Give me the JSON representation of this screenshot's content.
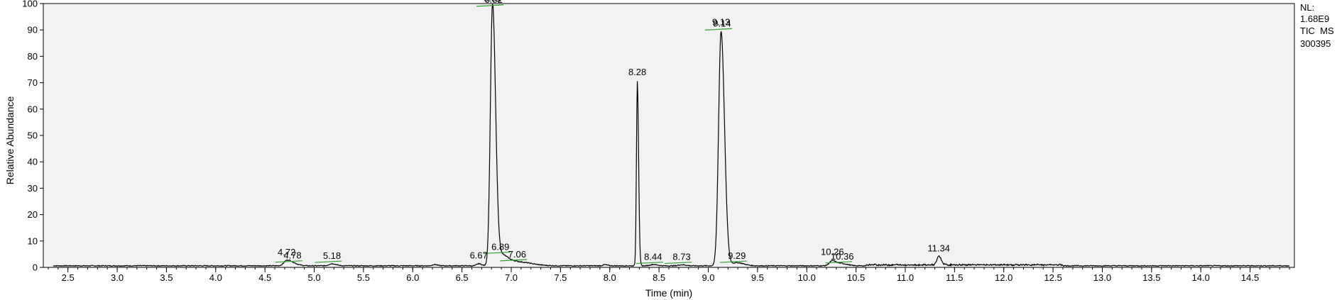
{
  "chart_data": {
    "type": "line",
    "xlabel": "Time (min)",
    "ylabel": "Relative Abundance",
    "xlim": [
      2.25,
      14.95
    ],
    "ylim": [
      0,
      100
    ],
    "x_ticks": [
      2.5,
      3.0,
      3.5,
      4.0,
      4.5,
      5.0,
      5.5,
      6.0,
      6.5,
      7.0,
      7.5,
      8.0,
      8.5,
      9.0,
      9.5,
      10.0,
      10.5,
      11.0,
      11.5,
      12.0,
      12.5,
      13.0,
      13.5,
      14.0,
      14.5
    ],
    "x_tick_labels": [
      "2.5",
      "3.0",
      "3.5",
      "4.0",
      "4.5",
      "5.0",
      "5.5",
      "6.0",
      "6.5",
      "7.0",
      "7.5",
      "8.0",
      "8.5",
      "9.0",
      "9.5",
      "10.0",
      "10.5",
      "11.0",
      "11.5",
      "12.0",
      "12.5",
      "13.0",
      "13.5",
      "14.0",
      "14.5"
    ],
    "y_ticks": [
      0,
      10,
      20,
      30,
      40,
      50,
      60,
      70,
      80,
      90,
      100
    ],
    "y_tick_labels": [
      "0",
      "10",
      "20",
      "30",
      "40",
      "50",
      "60",
      "70",
      "80",
      "90",
      "100"
    ],
    "baseline": 0.6,
    "peaks": [
      {
        "rt": 4.72,
        "height": 1.8,
        "width": 0.03
      },
      {
        "rt": 4.78,
        "height": 0.9,
        "width": 0.04
      },
      {
        "rt": 5.18,
        "height": 0.8,
        "width": 0.03
      },
      {
        "rt": 6.22,
        "height": 0.5,
        "width": 0.02
      },
      {
        "rt": 6.67,
        "height": 0.8,
        "width": 0.02
      },
      {
        "rt": 6.81,
        "height": 98.5,
        "width": 0.022
      },
      {
        "rt": 6.89,
        "height": 4.0,
        "width": 0.05
      },
      {
        "rt": 7.06,
        "height": 1.5,
        "width": 0.1
      },
      {
        "rt": 7.95,
        "height": 0.4,
        "width": 0.02
      },
      {
        "rt": 8.28,
        "height": 70.0,
        "width": 0.009
      },
      {
        "rt": 8.44,
        "height": 0.5,
        "width": 0.03
      },
      {
        "rt": 8.73,
        "height": 0.4,
        "width": 0.03
      },
      {
        "rt": 9.13,
        "height": 89.0,
        "width": 0.025
      },
      {
        "rt": 9.29,
        "height": 1.2,
        "width": 0.05
      },
      {
        "rt": 10.26,
        "height": 1.9,
        "width": 0.03
      },
      {
        "rt": 10.36,
        "height": 0.8,
        "width": 0.04
      },
      {
        "rt": 11.34,
        "height": 3.3,
        "width": 0.018
      }
    ],
    "peak_labels": [
      {
        "text": "4.72",
        "rt": 4.72,
        "y": 3.8,
        "marker": false
      },
      {
        "text": "4.78",
        "rt": 4.78,
        "y": 2.5,
        "marker": true
      },
      {
        "text": "5.18",
        "rt": 5.18,
        "y": 2.4,
        "marker": true
      },
      {
        "text": "6.67",
        "rt": 6.67,
        "y": 2.5,
        "marker": false
      },
      {
        "text": "6.81",
        "rt": 6.81,
        "y": 100,
        "marker": false
      },
      {
        "text": "6.82",
        "rt": 6.82,
        "y": 99.5,
        "marker": true
      },
      {
        "text": "6.89",
        "rt": 6.89,
        "y": 5.8,
        "marker": true
      },
      {
        "text": "7.06",
        "rt": 7.06,
        "y": 3.0,
        "marker": true
      },
      {
        "text": "8.28",
        "rt": 8.28,
        "y": 72,
        "marker": false
      },
      {
        "text": "8.44",
        "rt": 8.44,
        "y": 2.0,
        "marker": true
      },
      {
        "text": "8.73",
        "rt": 8.73,
        "y": 2.0,
        "marker": true
      },
      {
        "text": "9.13",
        "rt": 9.13,
        "y": 91,
        "marker": false
      },
      {
        "text": "9.14",
        "rt": 9.14,
        "y": 90.5,
        "marker": true
      },
      {
        "text": "9.29",
        "rt": 9.29,
        "y": 2.4,
        "marker": true
      },
      {
        "text": "10.26",
        "rt": 10.26,
        "y": 3.9,
        "marker": false
      },
      {
        "text": "10.36",
        "rt": 10.36,
        "y": 2.2,
        "marker": true
      },
      {
        "text": "11.34",
        "rt": 11.34,
        "y": 5.3,
        "marker": false
      }
    ],
    "info_lines": [
      "NL:",
      "1.68E9",
      "TIC  MS",
      "300395"
    ],
    "colors": {
      "trace": "#000000",
      "marker": "#2ca02c",
      "plot_bg": "#f2f2f2",
      "axis": "#000000"
    }
  }
}
